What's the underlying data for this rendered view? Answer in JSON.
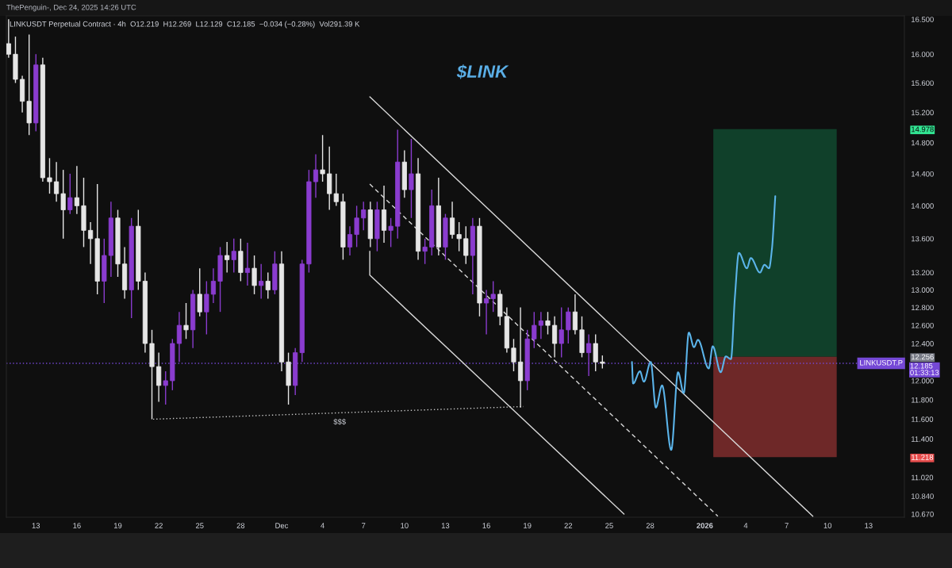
{
  "chart_data": {
    "type": "candlestick",
    "title": "$LINK",
    "subtitle": "LINKUSDT Perpetual Contract · 4h  O12.219  H12.269  L12.129  C12.185  −0.034 (−0.28%)  Vol291.39 K",
    "x": [
      "2025-11-11T00:00",
      "2025-11-11T12:00",
      "2025-11-12T00:00",
      "2025-11-12T12:00",
      "2025-11-13T00:00",
      "2025-11-13T12:00",
      "2025-11-14T00:00",
      "2025-11-14T12:00",
      "2025-11-15T00:00",
      "2025-11-15T12:00",
      "2025-11-16T00:00",
      "2025-11-16T12:00",
      "2025-11-17T00:00",
      "2025-11-17T12:00",
      "2025-11-18T00:00",
      "2025-11-18T12:00",
      "2025-11-19T00:00",
      "2025-11-19T12:00",
      "2025-11-20T00:00",
      "2025-11-20T12:00",
      "2025-11-21T00:00",
      "2025-11-21T12:00",
      "2025-11-22T00:00",
      "2025-11-22T12:00",
      "2025-11-23T00:00",
      "2025-11-23T12:00",
      "2025-11-24T00:00",
      "2025-11-24T12:00",
      "2025-11-25T00:00",
      "2025-11-25T12:00",
      "2025-11-26T00:00",
      "2025-11-26T12:00",
      "2025-11-27T00:00",
      "2025-11-27T12:00",
      "2025-11-28T00:00",
      "2025-11-28T12:00",
      "2025-11-29T00:00",
      "2025-11-29T12:00",
      "2025-11-30T00:00",
      "2025-11-30T12:00",
      "2025-12-01T00:00",
      "2025-12-01T12:00",
      "2025-12-02T00:00",
      "2025-12-02T12:00",
      "2025-12-03T00:00",
      "2025-12-03T12:00",
      "2025-12-04T00:00",
      "2025-12-04T12:00",
      "2025-12-05T00:00",
      "2025-12-05T12:00",
      "2025-12-06T00:00",
      "2025-12-06T12:00",
      "2025-12-07T00:00",
      "2025-12-07T12:00",
      "2025-12-08T00:00",
      "2025-12-08T12:00",
      "2025-12-09T00:00",
      "2025-12-09T12:00",
      "2025-12-10T00:00",
      "2025-12-10T12:00",
      "2025-12-11T00:00",
      "2025-12-11T12:00",
      "2025-12-12T00:00",
      "2025-12-12T12:00",
      "2025-12-13T00:00",
      "2025-12-13T12:00",
      "2025-12-14T00:00",
      "2025-12-14T12:00",
      "2025-12-15T00:00",
      "2025-12-15T12:00",
      "2025-12-16T00:00",
      "2025-12-16T12:00",
      "2025-12-17T00:00",
      "2025-12-17T12:00",
      "2025-12-18T00:00",
      "2025-12-18T12:00",
      "2025-12-19T00:00",
      "2025-12-19T12:00",
      "2025-12-20T00:00",
      "2025-12-20T12:00",
      "2025-12-21T00:00",
      "2025-12-21T12:00",
      "2025-12-22T00:00",
      "2025-12-22T12:00",
      "2025-12-23T00:00",
      "2025-12-23T12:00",
      "2025-12-24T00:00",
      "2025-12-24T12:00"
    ],
    "ohlc": [
      [
        16.15,
        16.5,
        15.95,
        16.0
      ],
      [
        16.0,
        16.25,
        15.6,
        15.65
      ],
      [
        15.65,
        15.7,
        15.2,
        15.35
      ],
      [
        15.35,
        16.28,
        14.9,
        15.06
      ],
      [
        15.06,
        16.0,
        14.95,
        15.85
      ],
      [
        15.85,
        15.95,
        14.3,
        14.35
      ],
      [
        14.35,
        14.6,
        14.15,
        14.3
      ],
      [
        14.3,
        14.55,
        14.05,
        14.15
      ],
      [
        14.15,
        14.45,
        13.6,
        13.95
      ],
      [
        13.95,
        14.4,
        13.9,
        14.1
      ],
      [
        14.1,
        14.5,
        13.9,
        14.0
      ],
      [
        14.0,
        14.35,
        13.5,
        13.7
      ],
      [
        13.7,
        13.8,
        13.3,
        13.6
      ],
      [
        13.6,
        14.27,
        12.95,
        13.1
      ],
      [
        13.1,
        13.6,
        12.85,
        13.4
      ],
      [
        13.4,
        14.05,
        13.15,
        13.85
      ],
      [
        13.85,
        13.95,
        13.15,
        13.3
      ],
      [
        13.3,
        13.5,
        12.9,
        13.0
      ],
      [
        13.0,
        13.85,
        12.68,
        13.75
      ],
      [
        13.75,
        13.95,
        13.0,
        13.1
      ],
      [
        13.1,
        13.2,
        12.3,
        12.4
      ],
      [
        12.4,
        12.55,
        11.6,
        12.15
      ],
      [
        12.15,
        12.3,
        11.78,
        11.95
      ],
      [
        11.95,
        12.1,
        11.75,
        12.0
      ],
      [
        12.0,
        12.45,
        11.9,
        12.4
      ],
      [
        12.4,
        12.75,
        12.2,
        12.6
      ],
      [
        12.6,
        12.85,
        12.45,
        12.55
      ],
      [
        12.55,
        13.0,
        12.35,
        12.95
      ],
      [
        12.95,
        13.25,
        12.7,
        12.75
      ],
      [
        12.75,
        13.1,
        12.5,
        12.95
      ],
      [
        12.95,
        13.25,
        12.85,
        13.1
      ],
      [
        13.1,
        13.5,
        12.75,
        13.4
      ],
      [
        13.4,
        13.56,
        13.2,
        13.35
      ],
      [
        13.35,
        13.6,
        13.2,
        13.45
      ],
      [
        13.45,
        13.6,
        13.1,
        13.2
      ],
      [
        13.2,
        13.55,
        13.05,
        13.25
      ],
      [
        13.25,
        13.4,
        12.95,
        13.05
      ],
      [
        13.05,
        13.3,
        12.9,
        13.1
      ],
      [
        13.1,
        13.2,
        12.9,
        13.0
      ],
      [
        13.0,
        13.45,
        12.95,
        13.3
      ],
      [
        13.3,
        13.45,
        12.1,
        12.2
      ],
      [
        12.2,
        12.3,
        11.75,
        11.95
      ],
      [
        11.95,
        12.35,
        11.85,
        12.3
      ],
      [
        12.3,
        13.35,
        12.2,
        13.3
      ],
      [
        13.3,
        14.45,
        13.2,
        14.3
      ],
      [
        14.3,
        14.65,
        14.1,
        14.45
      ],
      [
        14.45,
        14.9,
        14.3,
        14.4
      ],
      [
        14.4,
        14.75,
        13.95,
        14.15
      ],
      [
        14.15,
        14.4,
        14.0,
        14.05
      ],
      [
        14.05,
        14.15,
        13.35,
        13.5
      ],
      [
        13.5,
        13.75,
        13.4,
        13.65
      ],
      [
        13.65,
        14.0,
        13.5,
        13.85
      ],
      [
        13.85,
        14.05,
        13.7,
        13.95
      ],
      [
        13.95,
        14.05,
        13.5,
        13.6
      ],
      [
        13.6,
        14.05,
        13.45,
        13.95
      ],
      [
        13.95,
        14.25,
        13.55,
        13.7
      ],
      [
        13.7,
        13.85,
        13.5,
        13.75
      ],
      [
        13.75,
        14.97,
        13.6,
        14.55
      ],
      [
        14.55,
        14.7,
        14.1,
        14.2
      ],
      [
        14.2,
        14.85,
        13.85,
        14.4
      ],
      [
        14.4,
        14.6,
        13.35,
        13.45
      ],
      [
        13.45,
        13.6,
        13.3,
        13.5
      ],
      [
        13.5,
        14.2,
        13.4,
        14.0
      ],
      [
        14.0,
        14.35,
        13.4,
        13.5
      ],
      [
        13.5,
        13.9,
        13.35,
        13.85
      ],
      [
        13.85,
        14.05,
        13.6,
        13.65
      ],
      [
        13.65,
        13.8,
        13.45,
        13.6
      ],
      [
        13.6,
        13.75,
        13.3,
        13.4
      ],
      [
        13.4,
        13.85,
        12.95,
        13.75
      ],
      [
        13.75,
        13.85,
        12.7,
        12.85
      ],
      [
        12.85,
        13.0,
        12.5,
        12.9
      ],
      [
        12.9,
        13.1,
        12.75,
        12.95
      ],
      [
        12.95,
        13.0,
        12.6,
        12.7
      ],
      [
        12.7,
        12.8,
        12.3,
        12.35
      ],
      [
        12.35,
        12.45,
        12.1,
        12.2
      ],
      [
        12.2,
        12.8,
        11.72,
        12.0
      ],
      [
        12.0,
        12.55,
        11.9,
        12.45
      ],
      [
        12.45,
        12.75,
        12.35,
        12.6
      ],
      [
        12.6,
        12.75,
        12.45,
        12.65
      ],
      [
        12.65,
        12.75,
        12.5,
        12.6
      ],
      [
        12.6,
        12.7,
        12.25,
        12.4
      ],
      [
        12.4,
        12.8,
        12.25,
        12.55
      ],
      [
        12.55,
        12.8,
        12.4,
        12.75
      ],
      [
        12.75,
        12.95,
        12.5,
        12.55
      ],
      [
        12.55,
        12.7,
        12.25,
        12.3
      ],
      [
        12.3,
        12.5,
        12.05,
        12.4
      ],
      [
        12.4,
        12.5,
        12.1,
        12.2
      ],
      [
        12.2,
        12.27,
        12.13,
        12.185
      ]
    ],
    "colors": [
      "#e6e6e6",
      "#e6e6e6",
      "#e6e6e6",
      "#e6e6e6",
      "#8a3ccf",
      "#e6e6e6",
      "#e6e6e6",
      "#e6e6e6",
      "#e6e6e6",
      "#8a3ccf",
      "#e6e6e6",
      "#e6e6e6",
      "#e6e6e6",
      "#e6e6e6",
      "#8a3ccf",
      "#8a3ccf",
      "#e6e6e6",
      "#e6e6e6",
      "#8a3ccf",
      "#e6e6e6",
      "#e6e6e6",
      "#e6e6e6",
      "#e6e6e6",
      "#8a3ccf",
      "#8a3ccf",
      "#8a3ccf",
      "#e6e6e6",
      "#8a3ccf",
      "#e6e6e6",
      "#8a3ccf",
      "#8a3ccf",
      "#8a3ccf",
      "#e6e6e6",
      "#8a3ccf",
      "#e6e6e6",
      "#8a3ccf",
      "#e6e6e6",
      "#8a3ccf",
      "#e6e6e6",
      "#8a3ccf",
      "#e6e6e6",
      "#e6e6e6",
      "#8a3ccf",
      "#8a3ccf",
      "#8a3ccf",
      "#8a3ccf",
      "#e6e6e6",
      "#e6e6e6",
      "#e6e6e6",
      "#e6e6e6",
      "#8a3ccf",
      "#8a3ccf",
      "#8a3ccf",
      "#e6e6e6",
      "#8a3ccf",
      "#e6e6e6",
      "#8a3ccf",
      "#8a3ccf",
      "#e6e6e6",
      "#8a3ccf",
      "#e6e6e6",
      "#8a3ccf",
      "#8a3ccf",
      "#e6e6e6",
      "#8a3ccf",
      "#e6e6e6",
      "#e6e6e6",
      "#e6e6e6",
      "#8a3ccf",
      "#e6e6e6",
      "#8a3ccf",
      "#8a3ccf",
      "#e6e6e6",
      "#e6e6e6",
      "#e6e6e6",
      "#e6e6e6",
      "#8a3ccf",
      "#8a3ccf",
      "#8a3ccf",
      "#e6e6e6",
      "#e6e6e6",
      "#8a3ccf",
      "#8a3ccf",
      "#e6e6e6",
      "#e6e6e6",
      "#8a3ccf",
      "#e6e6e6",
      "#e6e6e6"
    ],
    "series": [
      {
        "type": "bar",
        "x": [
          "2026-01-06T03:30"
        ],
        "base": [
          12.256
        ],
        "values": [
          2.722
        ],
        "color": "#10402a"
      },
      {
        "type": "bar",
        "x": [
          "2026-01-06T03:30"
        ],
        "base": [
          11.218
        ],
        "values": [
          1.038
        ],
        "color": "#6e2828"
      },
      {
        "type": "line",
        "x": [
          "2025-11-21T14:00",
          "2025-12-18T17:00"
        ],
        "values": [
          11.6,
          11.73
        ],
        "color": "#c8c8c8",
        "line_style": "dotted"
      },
      {
        "type": "line",
        "x": [
          "2025-12-07T11:00",
          "2026-01-08T22:00"
        ],
        "values": [
          15.41,
          10.65
        ],
        "color": "#d9d9d9",
        "line_style": "solid"
      },
      {
        "type": "line",
        "x": [
          "2025-12-07T11:00",
          "2026-01-01T23:00"
        ],
        "values": [
          14.27,
          10.65
        ],
        "color": "#d9d9d9",
        "line_style": "dashed"
      },
      {
        "type": "line",
        "x": [
          "2025-12-07T11:00",
          "2025-12-07T11:00",
          "2025-12-26T02:00"
        ],
        "values": [
          13.45,
          13.17,
          10.67
        ],
        "color": "#d9d9d9",
        "line_style": "solid"
      },
      {
        "type": "line",
        "x": [
          "2025-12-26T16:00",
          "2025-12-26T18:00",
          "2025-12-27T06:00",
          "2025-12-27T13:00",
          "2025-12-28T01:00",
          "2025-12-28T10:00",
          "2025-12-28T21:00",
          "2025-12-29T13:00",
          "2025-12-30T01:00",
          "2025-12-30T11:00",
          "2025-12-30T20:00",
          "2025-12-31T05:00",
          "2025-12-31T12:00",
          "2026-01-01T07:00",
          "2026-01-01T14:00",
          "2026-01-02T04:00",
          "2026-01-02T13:00",
          "2026-01-02T22:00",
          "2026-01-03T05:00",
          "2026-01-03T12:00",
          "2026-01-04T02:00",
          "2026-01-04T09:00",
          "2026-01-05T01:00",
          "2026-01-05T09:00",
          "2026-01-05T17:00",
          "2026-01-05T22:00",
          "2026-01-06T04:00"
        ],
        "values": [
          12.2,
          11.97,
          12.1,
          11.99,
          12.2,
          11.72,
          11.95,
          11.29,
          12.09,
          11.87,
          12.52,
          12.36,
          12.44,
          12.13,
          12.37,
          12.09,
          12.26,
          12.23,
          12.92,
          13.43,
          13.25,
          13.37,
          13.2,
          13.29,
          13.25,
          13.47,
          14.12
        ],
        "color": "#5bb4ea",
        "line_style": "solid"
      }
    ],
    "xlim": [
      "2025-11-10T20:00",
      "2026-01-15T15:00"
    ],
    "ylim": [
      10.64,
      16.55
    ],
    "log": true,
    "xticks": [
      {
        "value": "2025-11-13",
        "label": "13"
      },
      {
        "value": "2025-11-16",
        "label": "16"
      },
      {
        "value": "2025-11-19",
        "label": "19"
      },
      {
        "value": "2025-11-22",
        "label": "22"
      },
      {
        "value": "2025-11-25",
        "label": "25"
      },
      {
        "value": "2025-11-28",
        "label": "28"
      },
      {
        "value": "2025-12-01",
        "label": "Dec"
      },
      {
        "value": "2025-12-04",
        "label": "4"
      },
      {
        "value": "2025-12-07",
        "label": "7"
      },
      {
        "value": "2025-12-10",
        "label": "10"
      },
      {
        "value": "2025-12-13",
        "label": "13"
      },
      {
        "value": "2025-12-16",
        "label": "16"
      },
      {
        "value": "2025-12-19",
        "label": "19"
      },
      {
        "value": "2025-12-22",
        "label": "22"
      },
      {
        "value": "2025-12-25",
        "label": "25"
      },
      {
        "value": "2025-12-28",
        "label": "28"
      },
      {
        "value": "2026-01-01",
        "label": "2026"
      },
      {
        "value": "2026-01-04",
        "label": "4"
      },
      {
        "value": "2026-01-07",
        "label": "7"
      },
      {
        "value": "2026-01-10",
        "label": "10"
      },
      {
        "value": "2026-01-13",
        "label": "13"
      }
    ],
    "yticks": [
      {
        "value": 16.5,
        "label": "16.500"
      },
      {
        "value": 16,
        "label": "16.000"
      },
      {
        "value": 15.6,
        "label": "15.600"
      },
      {
        "value": 15.2,
        "label": "15.200"
      },
      14.978,
      {
        "value": 14.8,
        "label": "14.800"
      },
      {
        "value": 14.4,
        "label": "14.400"
      },
      {
        "value": 14,
        "label": "14.000"
      },
      {
        "value": 13.6,
        "label": "13.600"
      },
      {
        "value": 13.2,
        "label": "13.200"
      },
      {
        "value": 13,
        "label": "13.000"
      },
      {
        "value": 12.8,
        "label": "12.800"
      },
      {
        "value": 12.6,
        "label": "12.600"
      },
      {
        "value": 12.4,
        "label": "12.400"
      },
      12.256,
      {
        "value": 12,
        "label": "12.000"
      },
      {
        "value": 11.8,
        "label": "11.800"
      },
      {
        "value": 11.6,
        "label": "11.600"
      },
      {
        "value": 11.4,
        "label": "11.400"
      },
      11.218,
      {
        "value": 11.02,
        "label": "11.020"
      },
      {
        "value": 10.84,
        "label": "10.840"
      },
      {
        "value": 10.67,
        "label": "10.670"
      }
    ],
    "ref_lines": [
      {
        "axis": "y",
        "value": 12.185,
        "label": "12.185\n01:33:13",
        "color": "#7548d6",
        "line_style": "dotted"
      }
    ],
    "annotations": [
      "ThePenguin-, Dec 24, 2025 14:26 UTC",
      {
        "text": "$$$",
        "x": "2025-12-05T06:00",
        "y": 11.66
      },
      {
        "text": "LINKUSDT.P",
        "y": 12.185
      }
    ]
  }
}
